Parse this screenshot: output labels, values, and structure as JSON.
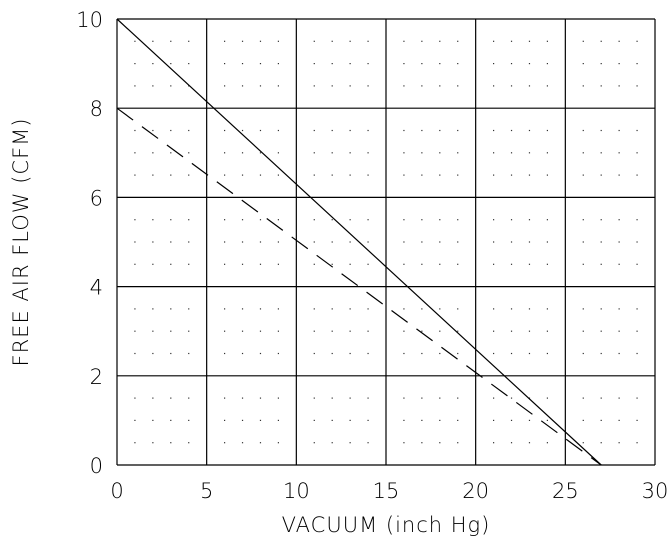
{
  "chart_data": {
    "type": "line",
    "title": "",
    "xlabel": "VACUUM (inch Hg)",
    "ylabel": "FREE AIR FLOW (CFM)",
    "xlim": [
      0,
      30
    ],
    "ylim": [
      0,
      10
    ],
    "x_ticks": [
      "0",
      "5",
      "10",
      "15",
      "20",
      "25",
      "30"
    ],
    "y_ticks": [
      "0",
      "2",
      "4",
      "6",
      "8",
      "10"
    ],
    "grid": true,
    "minor_grid": "dotted",
    "legend": "none",
    "series": [
      {
        "style": "solid",
        "color": "#000000",
        "points": [
          [
            0,
            10
          ],
          [
            27,
            0
          ]
        ]
      },
      {
        "style": "dashed",
        "color": "#000000",
        "points": [
          [
            0,
            8
          ],
          [
            27,
            0
          ]
        ]
      }
    ]
  }
}
